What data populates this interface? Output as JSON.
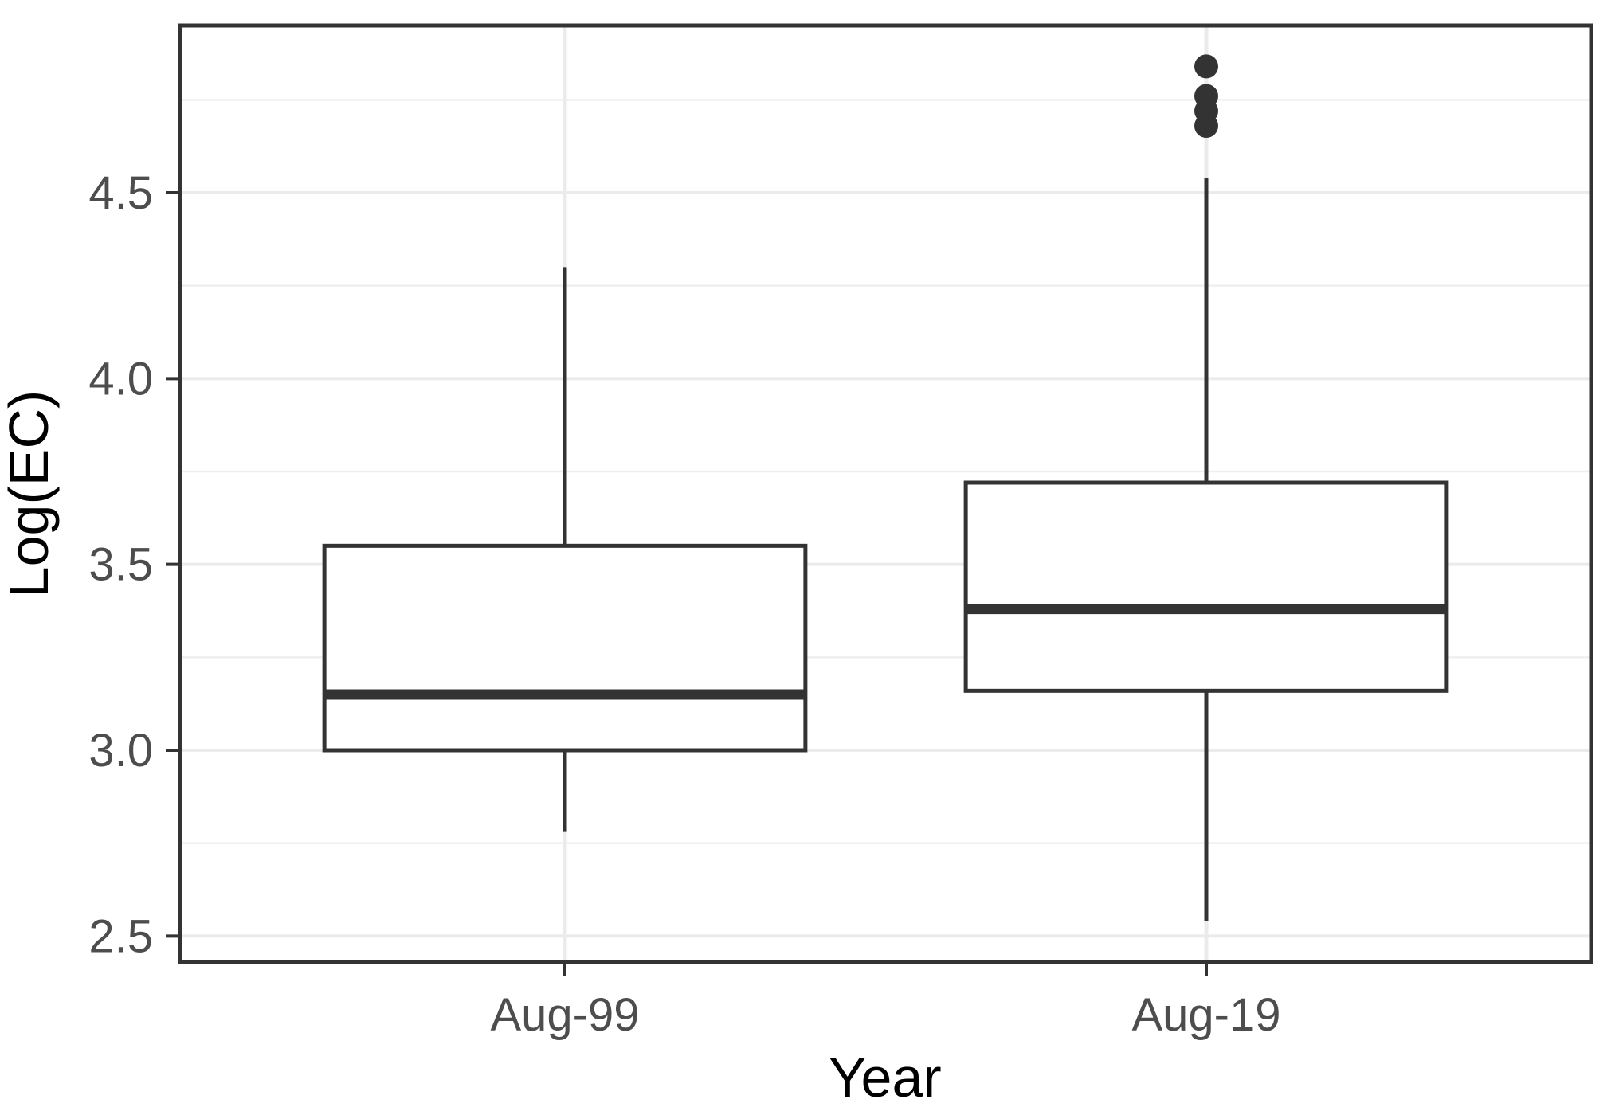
{
  "chart_data": {
    "type": "boxplot",
    "title": "",
    "xlabel": "Year",
    "ylabel": "Log(EC)",
    "categories": [
      "Aug-99",
      "Aug-19"
    ],
    "series": [
      {
        "name": "Aug-99",
        "whisker_low": 2.78,
        "q1": 3.0,
        "median": 3.15,
        "q3": 3.55,
        "whisker_high": 4.3,
        "outliers": []
      },
      {
        "name": "Aug-19",
        "whisker_low": 2.54,
        "q1": 3.16,
        "median": 3.38,
        "q3": 3.72,
        "whisker_high": 4.54,
        "outliers": [
          4.68,
          4.72,
          4.76,
          4.84
        ]
      }
    ],
    "ylim": [
      2.43,
      4.95
    ],
    "yticks": [
      2.5,
      3.0,
      3.5,
      4.0,
      4.5
    ],
    "ytick_labels": [
      "2.5",
      "3.0",
      "3.5",
      "4.0",
      "4.5"
    ],
    "yminor_gridlines": [
      2.75,
      3.25,
      3.75,
      4.25,
      4.75
    ],
    "grid": "horizontal major+minor, vertical at categories",
    "legend_position": "none"
  },
  "colors": {
    "background": "#ffffff",
    "panel_background": "#ffffff",
    "panel_border": "#333333",
    "grid_major": "#ebebeb",
    "grid_minor": "#efefef",
    "box_stroke": "#333333",
    "box_fill": "#ffffff",
    "median_stroke": "#333333",
    "whisker_stroke": "#333333",
    "outlier_fill": "#333333",
    "tick_mark": "#333333",
    "tick_label": "#4d4d4d",
    "axis_title": "#000000"
  }
}
